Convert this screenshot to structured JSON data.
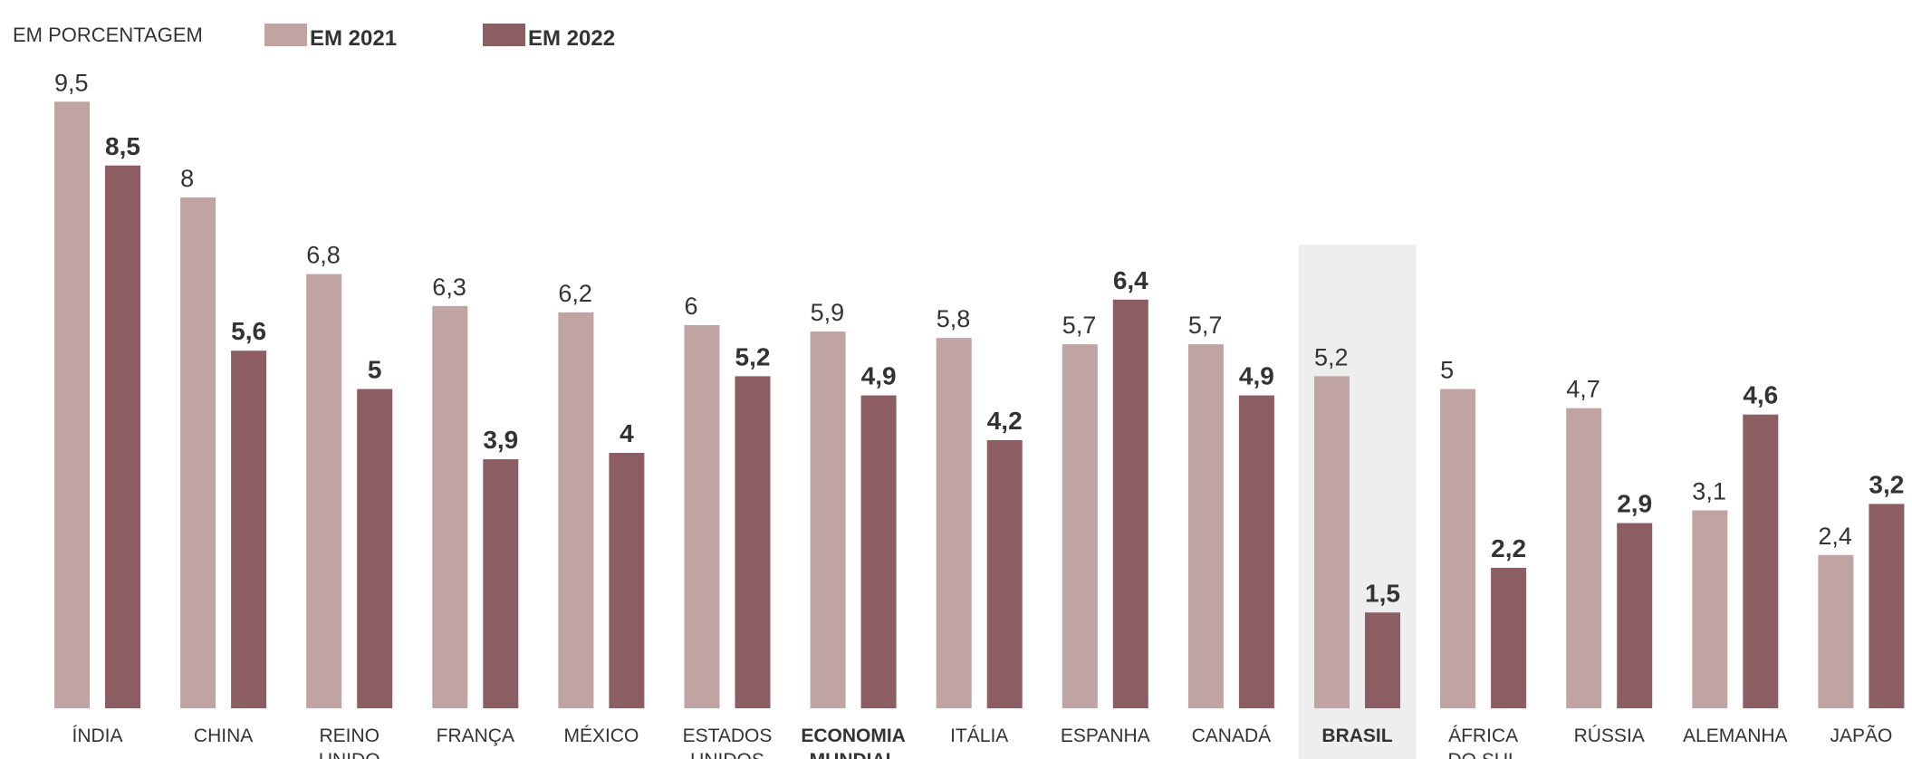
{
  "header": {
    "unit_label": "EM PORCENTAGEM"
  },
  "colors": {
    "series_2021": "#c0a3a3",
    "series_2022": "#8c5d62",
    "highlight_bg": "#eeeeee",
    "text": "#333333"
  },
  "chart_data": {
    "type": "bar",
    "categories": [
      [
        "ÍNDIA"
      ],
      [
        "CHINA"
      ],
      [
        "REINO",
        "UNIDO"
      ],
      [
        "FRANÇA"
      ],
      [
        "MÉXICO"
      ],
      [
        "ESTADOS",
        "UNIDOS"
      ],
      [
        "ECONOMIA",
        "MUNDIAL"
      ],
      [
        "ITÁLIA"
      ],
      [
        "ESPANHA"
      ],
      [
        "CANADÁ"
      ],
      [
        "BRASIL"
      ],
      [
        "ÁFRICA",
        "DO SUL"
      ],
      [
        "RÚSSIA"
      ],
      [
        "ALEMANHA"
      ],
      [
        "JAPÃO"
      ]
    ],
    "bold_categories": [
      "ECONOMIA",
      "BRASIL"
    ],
    "highlight_category": "BRASIL",
    "series": [
      {
        "name": "EM 2021",
        "values": [
          9.5,
          8,
          6.8,
          6.3,
          6.2,
          6,
          5.9,
          5.8,
          5.7,
          5.7,
          5.2,
          5,
          4.7,
          3.1,
          2.4
        ],
        "labels": [
          "9,5",
          "8",
          "6,8",
          "6,3",
          "6,2",
          "6",
          "5,9",
          "5,8",
          "5,7",
          "5,7",
          "5,2",
          "5",
          "4,7",
          "3,1",
          "2,4"
        ]
      },
      {
        "name": "EM 2022",
        "values": [
          8.5,
          5.6,
          5,
          3.9,
          4,
          5.2,
          4.9,
          4.2,
          6.4,
          4.9,
          1.5,
          2.2,
          2.9,
          4.6,
          3.2
        ],
        "labels": [
          "8,5",
          "5,6",
          "5",
          "3,9",
          "4",
          "5,2",
          "4,9",
          "4,2",
          "6,4",
          "4,9",
          "1,5",
          "2,2",
          "2,9",
          "4,6",
          "3,2"
        ]
      }
    ],
    "ylim": [
      0,
      9.5
    ],
    "legend_position": "top"
  }
}
